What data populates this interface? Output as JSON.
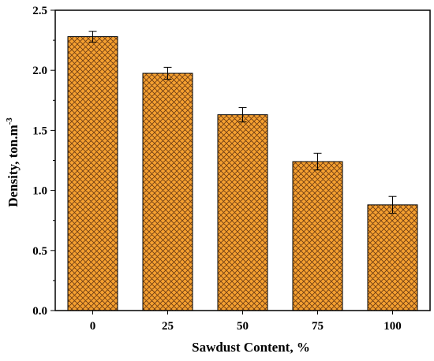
{
  "chart_data": {
    "type": "bar",
    "categories": [
      "0",
      "25",
      "50",
      "75",
      "100"
    ],
    "values": [
      2.28,
      1.975,
      1.63,
      1.24,
      0.88
    ],
    "errors": [
      0.045,
      0.05,
      0.06,
      0.07,
      0.07
    ],
    "title": "",
    "xlabel": "Sawdust Content, %",
    "ylabel_main": "Density, ton.m",
    "ylabel_sup": "-3",
    "ylim": [
      0.0,
      2.5
    ],
    "yticks": [
      "0.0",
      "0.5",
      "1.0",
      "1.5",
      "2.0",
      "2.5"
    ],
    "grid": false,
    "legend": "none",
    "colors": {
      "bar_fill": "#f5a030",
      "hatch": "#6b3a12",
      "bar_stroke": "#000000"
    }
  }
}
